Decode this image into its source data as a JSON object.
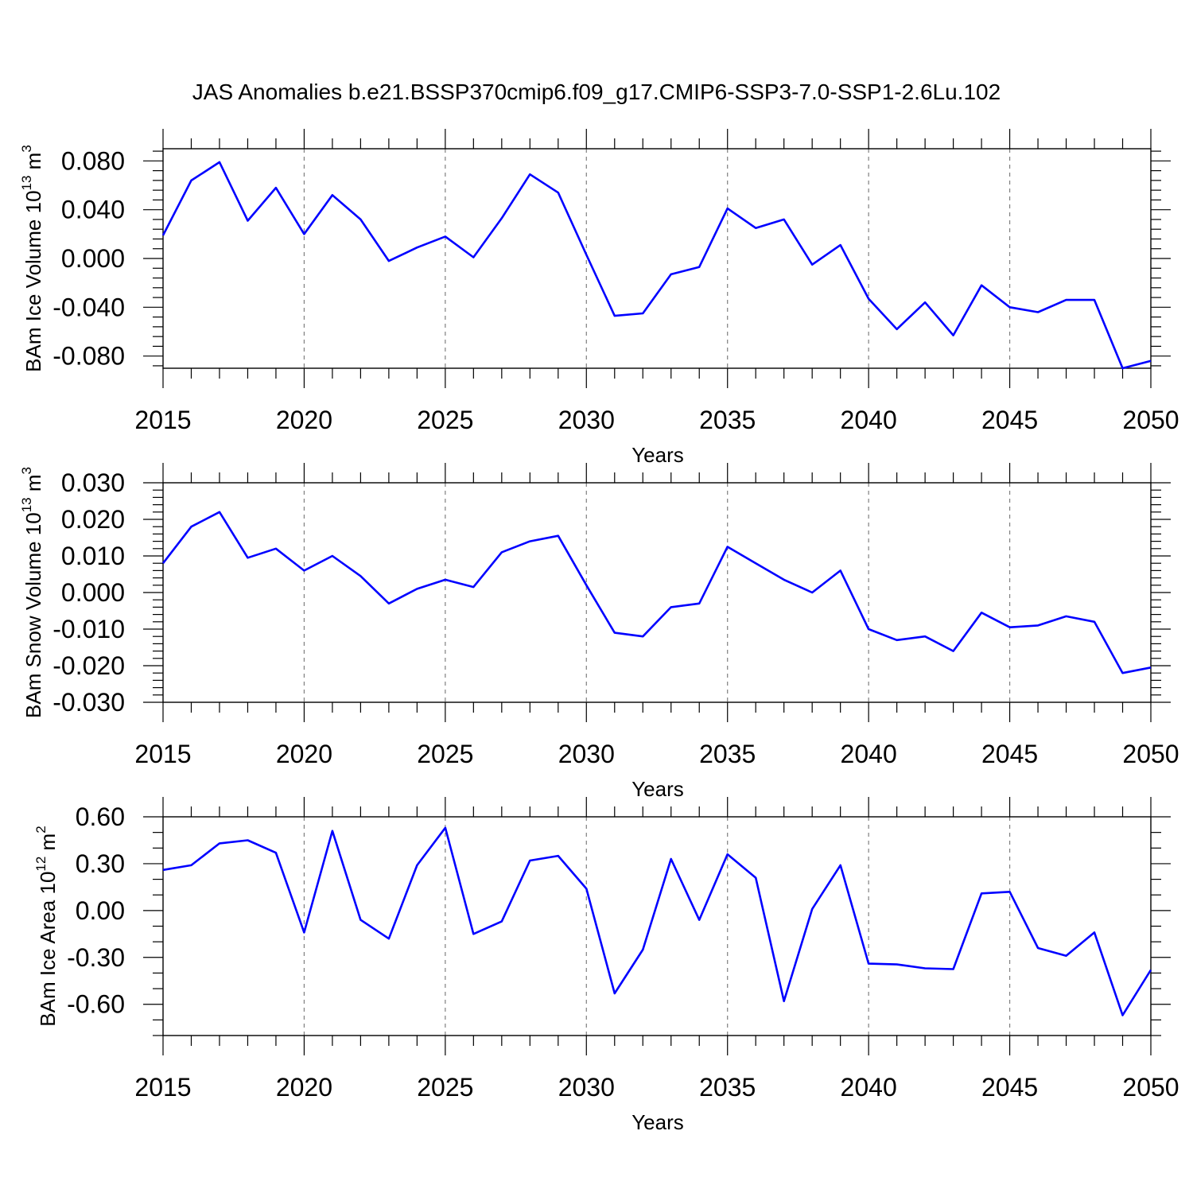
{
  "title": "JAS Anomalies b.e21.BSSP370cmip6.f09_g17.CMIP6-SSP3-7.0-SSP1-2.6Lu.102",
  "line_color": "#0000ff",
  "chart_data": [
    {
      "type": "line",
      "ylabel": "BAm Ice Volume 10",
      "ylabel_exp": "13",
      "ylabel_unit": "m",
      "ylabel_unit_exp": "3",
      "xlabel": "Years",
      "xlim": [
        2015,
        2050
      ],
      "ylim": [
        -0.09,
        0.09
      ],
      "yticks": [
        0.08,
        0.04,
        0.0,
        -0.04,
        -0.08
      ],
      "ytick_labels": [
        "0.080",
        "0.040",
        "0.000",
        "-0.040",
        "-0.080"
      ],
      "yminor_step": 0.008,
      "xticks": [
        2015,
        2020,
        2025,
        2030,
        2035,
        2040,
        2045,
        2050
      ],
      "xtick_labels": [
        "2015",
        "2020",
        "2025",
        "2030",
        "2035",
        "2040",
        "2045",
        "2050"
      ],
      "x": [
        2015,
        2016,
        2017,
        2018,
        2019,
        2020,
        2021,
        2022,
        2023,
        2024,
        2025,
        2026,
        2027,
        2028,
        2029,
        2030,
        2031,
        2032,
        2033,
        2034,
        2035,
        2036,
        2037,
        2038,
        2039,
        2040,
        2041,
        2042,
        2043,
        2044,
        2045,
        2046,
        2047,
        2048,
        2049,
        2050
      ],
      "series": [
        {
          "name": "BAm Ice Volume",
          "values": [
            0.019,
            0.064,
            0.079,
            0.031,
            0.058,
            0.02,
            0.052,
            0.032,
            -0.002,
            0.009,
            0.018,
            0.001,
            0.033,
            0.069,
            0.054,
            0.003,
            -0.047,
            -0.045,
            -0.013,
            -0.007,
            0.041,
            0.025,
            0.032,
            -0.005,
            0.011,
            -0.033,
            -0.058,
            -0.036,
            -0.063,
            -0.022,
            -0.04,
            -0.044,
            -0.034,
            -0.034,
            -0.09,
            -0.084
          ]
        }
      ]
    },
    {
      "type": "line",
      "ylabel": "BAm Snow Volume 10",
      "ylabel_exp": "13",
      "ylabel_unit": "m",
      "ylabel_unit_exp": "3",
      "xlabel": "Years",
      "xlim": [
        2015,
        2050
      ],
      "ylim": [
        -0.03,
        0.03
      ],
      "yticks": [
        0.03,
        0.02,
        0.01,
        0.0,
        -0.01,
        -0.02,
        -0.03
      ],
      "ytick_labels": [
        "0.030",
        "0.020",
        "0.010",
        "0.000",
        "-0.010",
        "-0.020",
        "-0.030"
      ],
      "yminor_step": 0.002,
      "xticks": [
        2015,
        2020,
        2025,
        2030,
        2035,
        2040,
        2045,
        2050
      ],
      "xtick_labels": [
        "2015",
        "2020",
        "2025",
        "2030",
        "2035",
        "2040",
        "2045",
        "2050"
      ],
      "x": [
        2015,
        2016,
        2017,
        2018,
        2019,
        2020,
        2021,
        2022,
        2023,
        2024,
        2025,
        2026,
        2027,
        2028,
        2029,
        2030,
        2031,
        2032,
        2033,
        2034,
        2035,
        2036,
        2037,
        2038,
        2039,
        2040,
        2041,
        2042,
        2043,
        2044,
        2045,
        2046,
        2047,
        2048,
        2049,
        2050
      ],
      "series": [
        {
          "name": "BAm Snow Volume",
          "values": [
            0.008,
            0.018,
            0.022,
            0.0095,
            0.012,
            0.006,
            0.01,
            0.0045,
            -0.003,
            0.001,
            0.0035,
            0.0015,
            0.011,
            0.014,
            0.0155,
            0.002,
            -0.011,
            -0.012,
            -0.004,
            -0.003,
            0.0125,
            0.008,
            0.0035,
            0.0,
            0.006,
            -0.01,
            -0.013,
            -0.012,
            -0.016,
            -0.0055,
            -0.0095,
            -0.009,
            -0.0065,
            -0.008,
            -0.022,
            -0.0205
          ]
        }
      ]
    },
    {
      "type": "line",
      "ylabel": "BAm Ice Area 10",
      "ylabel_exp": "12",
      "ylabel_unit": "m",
      "ylabel_unit_exp": "2",
      "xlabel": "Years",
      "xlim": [
        2015,
        2050
      ],
      "ylim": [
        -0.8,
        0.6
      ],
      "yticks": [
        0.6,
        0.3,
        0.0,
        -0.3,
        -0.6
      ],
      "ytick_labels": [
        "0.60",
        "0.30",
        "0.00",
        "-0.30",
        "-0.60"
      ],
      "yminor_step": 0.1,
      "xticks": [
        2015,
        2020,
        2025,
        2030,
        2035,
        2040,
        2045,
        2050
      ],
      "xtick_labels": [
        "2015",
        "2020",
        "2025",
        "2030",
        "2035",
        "2040",
        "2045",
        "2050"
      ],
      "x": [
        2015,
        2016,
        2017,
        2018,
        2019,
        2020,
        2021,
        2022,
        2023,
        2024,
        2025,
        2026,
        2027,
        2028,
        2029,
        2030,
        2031,
        2032,
        2033,
        2034,
        2035,
        2036,
        2037,
        2038,
        2039,
        2040,
        2041,
        2042,
        2043,
        2044,
        2045,
        2046,
        2047,
        2048,
        2049,
        2050
      ],
      "series": [
        {
          "name": "BAm Ice Area",
          "values": [
            0.26,
            0.29,
            0.43,
            0.45,
            0.37,
            -0.14,
            0.51,
            -0.06,
            -0.18,
            0.29,
            0.53,
            -0.15,
            -0.07,
            0.32,
            0.35,
            0.14,
            -0.53,
            -0.25,
            0.33,
            -0.06,
            0.36,
            0.21,
            -0.58,
            0.01,
            0.29,
            -0.34,
            -0.345,
            -0.37,
            -0.375,
            0.11,
            0.12,
            -0.24,
            -0.29,
            -0.14,
            -0.67,
            -0.38
          ]
        }
      ]
    }
  ]
}
